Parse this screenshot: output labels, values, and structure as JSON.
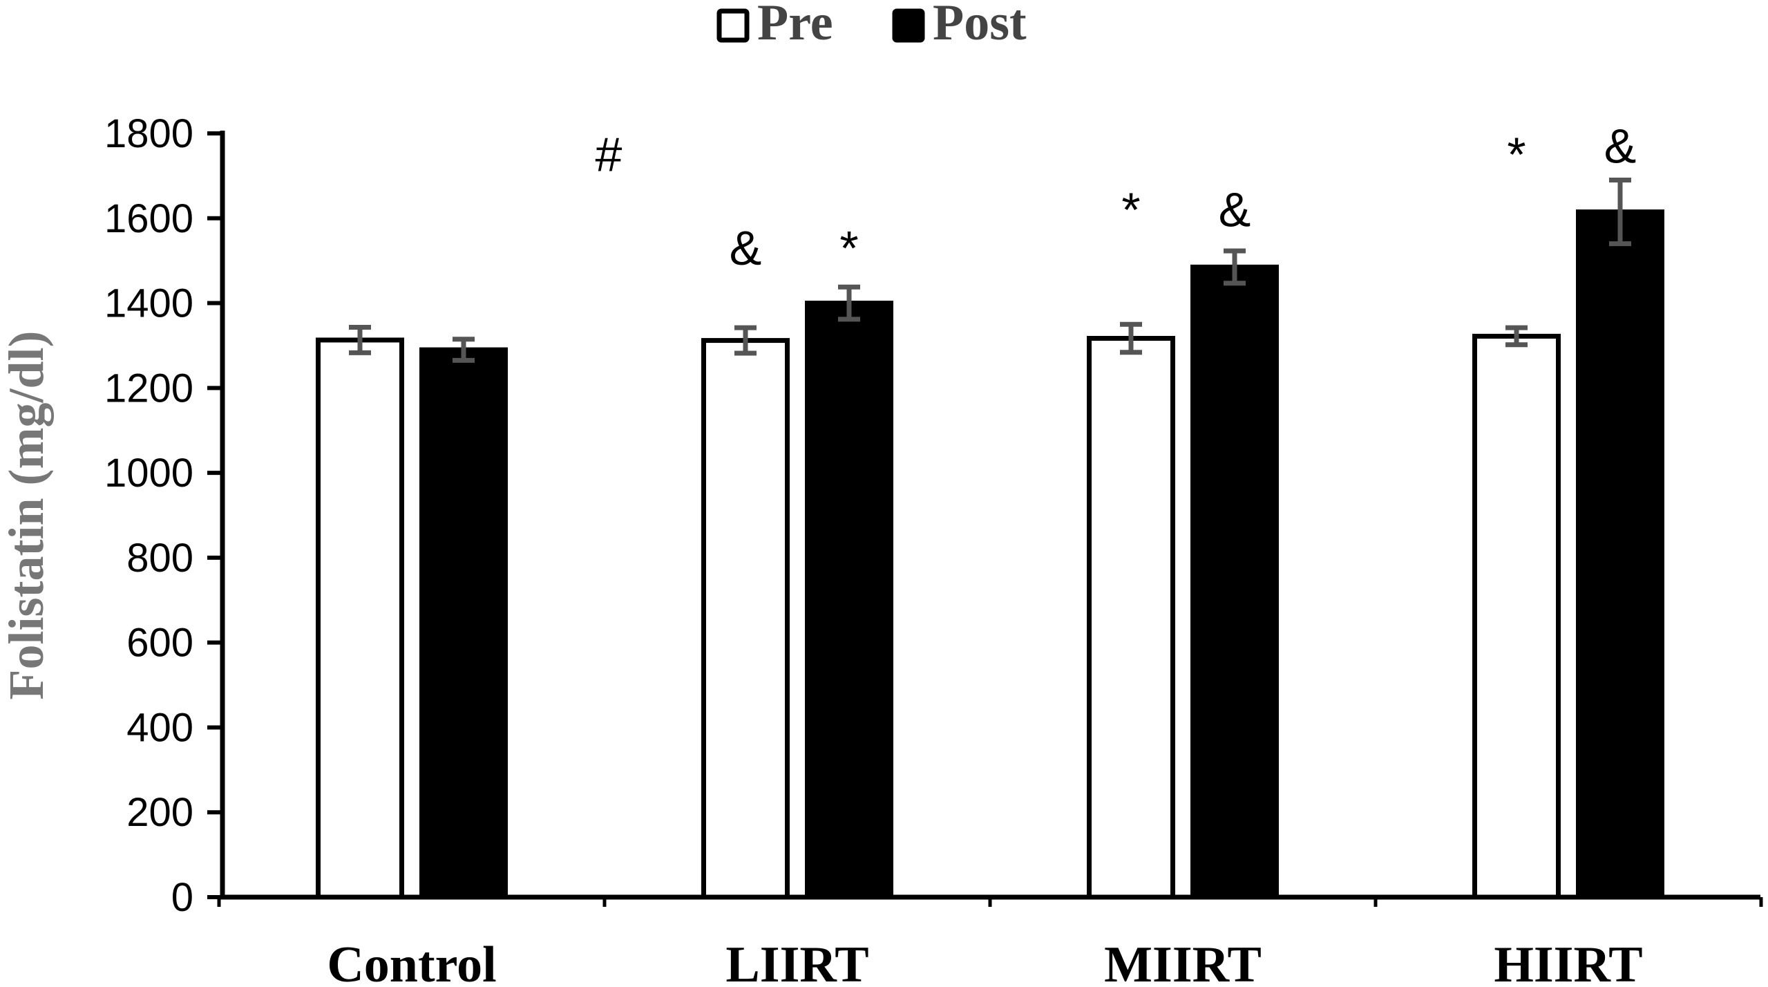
{
  "chart_data": {
    "type": "bar",
    "title": "",
    "xlabel": "",
    "ylabel": "Folistatin (mg/dl)",
    "ylim": [
      0,
      1800
    ],
    "yticks": [
      0,
      200,
      400,
      600,
      800,
      1000,
      1200,
      1400,
      1600,
      1800
    ],
    "categories": [
      "Control",
      "LIIRT",
      "MIIRT",
      "HIIRT"
    ],
    "series": [
      {
        "name": "Pre",
        "fill": "#ffffff",
        "stroke": "#000000",
        "values": [
          1313,
          1312,
          1317,
          1322
        ],
        "errors": [
          30,
          30,
          33,
          20
        ]
      },
      {
        "name": "Post",
        "fill": "#000000",
        "stroke": "#000000",
        "values": [
          1290,
          1400,
          1485,
          1615
        ],
        "errors": [
          25,
          38,
          38,
          75
        ]
      }
    ],
    "error_bar_color": "#555555",
    "legend": {
      "position": "top-center"
    },
    "annotations": [
      {
        "text": "#",
        "category": "Control",
        "position": "between-groups",
        "y": 1750
      },
      {
        "text": "&",
        "category": "LIIRT",
        "series": "Pre",
        "y": 1530
      },
      {
        "text": "*",
        "category": "LIIRT",
        "series": "Post",
        "y": 1530
      },
      {
        "text": "*",
        "category": "MIIRT",
        "series": "Pre",
        "y": 1620
      },
      {
        "text": "&",
        "category": "MIIRT",
        "series": "Post",
        "y": 1620
      },
      {
        "text": "*",
        "category": "HIIRT",
        "series": "Pre",
        "y": 1750
      },
      {
        "text": "&",
        "category": "HIIRT",
        "series": "Post",
        "y": 1770
      }
    ]
  }
}
